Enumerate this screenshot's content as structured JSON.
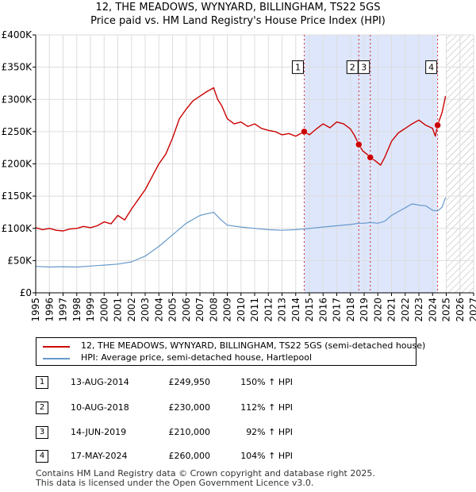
{
  "title_line1": "12, THE MEADOWS, WYNYARD, BILLINGHAM, TS22 5GS",
  "title_line2": "Price paid vs. HM Land Registry's House Price Index (HPI)",
  "legend": {
    "property": "12, THE MEADOWS, WYNYARD, BILLINGHAM, TS22 5GS (semi-detached house)",
    "hpi": "HPI: Average price, semi-detached house, Hartlepool"
  },
  "colors": {
    "property": "#cc0000",
    "hpi": "#6699cc",
    "shade": "#dde6fb",
    "grid": "#dddddd"
  },
  "transactions": [
    {
      "num": "1",
      "date": "13-AUG-2014",
      "price": "£249,950",
      "hpi": "150% ↑ HPI"
    },
    {
      "num": "2",
      "date": "10-AUG-2018",
      "price": "£230,000",
      "hpi": "112% ↑ HPI"
    },
    {
      "num": "3",
      "date": "14-JUN-2019",
      "price": "£210,000",
      "hpi": "92% ↑ HPI"
    },
    {
      "num": "4",
      "date": "17-MAY-2024",
      "price": "£260,000",
      "hpi": "104% ↑ HPI"
    }
  ],
  "footer": {
    "line1": "Contains HM Land Registry data © Crown copyright and database right 2025.",
    "line2": "This data is licensed under the Open Government Licence v3.0."
  },
  "chart_data": {
    "type": "line",
    "xlim": [
      1995,
      2027
    ],
    "ylim": [
      0,
      400000
    ],
    "x_ticks": [
      "1995",
      "1996",
      "1997",
      "1998",
      "1999",
      "2000",
      "2001",
      "2002",
      "2003",
      "2004",
      "2005",
      "2006",
      "2007",
      "2008",
      "2009",
      "2010",
      "2011",
      "2012",
      "2013",
      "2014",
      "2015",
      "2016",
      "2017",
      "2018",
      "2019",
      "2020",
      "2021",
      "2022",
      "2023",
      "2024",
      "2025",
      "2026",
      "2027"
    ],
    "y_ticks": [
      {
        "value": 0,
        "label": "£0"
      },
      {
        "value": 50000,
        "label": "£50K"
      },
      {
        "value": 100000,
        "label": "£100K"
      },
      {
        "value": 150000,
        "label": "£150K"
      },
      {
        "value": 200000,
        "label": "£200K"
      },
      {
        "value": 250000,
        "label": "£250K"
      },
      {
        "value": 300000,
        "label": "£300K"
      },
      {
        "value": 350000,
        "label": "£350K"
      },
      {
        "value": 400000,
        "label": "£400K"
      }
    ],
    "shaded_span": [
      2014.62,
      2024.37
    ],
    "hatched_from": 2025.0,
    "sales": [
      {
        "label": "1",
        "x": 2014.62,
        "y": 249950
      },
      {
        "label": "2",
        "x": 2018.61,
        "y": 230000
      },
      {
        "label": "3",
        "x": 2019.45,
        "y": 210000
      },
      {
        "label": "4",
        "x": 2024.37,
        "y": 260000
      }
    ],
    "series": [
      {
        "name": "12, THE MEADOWS, WYNYARD, BILLINGHAM, TS22 5GS (semi-detached house)",
        "x": [
          1995,
          1995.5,
          1996,
          1996.5,
          1997,
          1997.5,
          1998,
          1998.5,
          1999,
          1999.5,
          2000,
          2000.5,
          2001,
          2001.5,
          2002,
          2002.5,
          2003,
          2003.5,
          2004,
          2004.5,
          2005,
          2005.5,
          2006,
          2006.5,
          2007,
          2007.5,
          2008,
          2008.3,
          2008.6,
          2009,
          2009.5,
          2010,
          2010.5,
          2011,
          2011.5,
          2012,
          2012.5,
          2013,
          2013.5,
          2014,
          2014.62,
          2015,
          2015.5,
          2016,
          2016.5,
          2017,
          2017.5,
          2018,
          2018.3,
          2018.61,
          2018.9,
          2019.2,
          2019.45,
          2019.8,
          2020.2,
          2020.5,
          2021,
          2021.5,
          2022,
          2022.5,
          2023,
          2023.5,
          2024,
          2024.2,
          2024.37,
          2024.7,
          2024.95
        ],
        "values": [
          101000,
          98000,
          100000,
          97000,
          96000,
          99000,
          100000,
          103000,
          101000,
          104000,
          110000,
          107000,
          120000,
          113000,
          130000,
          145000,
          160000,
          180000,
          200000,
          215000,
          240000,
          270000,
          285000,
          298000,
          305000,
          312000,
          318000,
          300000,
          290000,
          270000,
          262000,
          265000,
          258000,
          262000,
          255000,
          252000,
          250000,
          245000,
          247000,
          243000,
          249950,
          245000,
          254000,
          262000,
          256000,
          265000,
          262000,
          254000,
          244000,
          230000,
          220000,
          215000,
          210000,
          205000,
          198000,
          210000,
          235000,
          248000,
          255000,
          262000,
          268000,
          260000,
          255000,
          243000,
          260000,
          280000,
          305000
        ]
      },
      {
        "name": "HPI: Average price, semi-detached house, Hartlepool",
        "x": [
          1995,
          1996,
          1997,
          1998,
          1999,
          2000,
          2001,
          2002,
          2003,
          2004,
          2005,
          2006,
          2007,
          2008,
          2008.5,
          2009,
          2010,
          2011,
          2012,
          2013,
          2014,
          2014.62,
          2015,
          2016,
          2017,
          2018,
          2018.61,
          2019,
          2019.45,
          2020,
          2020.5,
          2021,
          2022,
          2022.5,
          2023,
          2023.5,
          2024,
          2024.37,
          2024.7,
          2024.95
        ],
        "values": [
          41000,
          40000,
          40500,
          40000,
          41500,
          43000,
          44500,
          48000,
          57000,
          72000,
          90000,
          108000,
          120000,
          125000,
          114000,
          105000,
          102000,
          100000,
          98000,
          97000,
          98000,
          99000,
          100000,
          102000,
          104000,
          106000,
          108000,
          108000,
          109000,
          108000,
          111000,
          120000,
          132000,
          138000,
          136000,
          135000,
          128000,
          127000,
          133000,
          148000
        ]
      }
    ],
    "title": "12, THE MEADOWS, WYNYARD, BILLINGHAM, TS22 5GS",
    "subtitle": "Price paid vs. HM Land Registry's House Price Index (HPI)",
    "xlabel": "",
    "ylabel": ""
  }
}
